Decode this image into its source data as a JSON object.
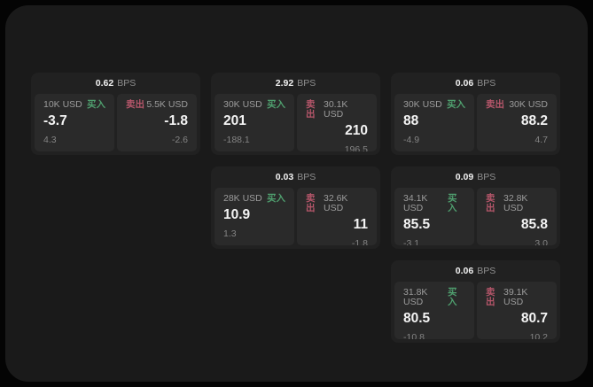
{
  "colors": {
    "buy_green": "#4f9e6e",
    "sell_red": "#b5566a",
    "card_bg": "#212121",
    "panel_bg": "#2a2a2a",
    "screen_bg": "#1a1a1a"
  },
  "labels": {
    "bps_unit": "BPS",
    "buy": "买入",
    "sell": "卖出"
  },
  "cards": [
    {
      "bps": "0.62",
      "buy": {
        "amount": "10K USD",
        "value": "-3.7",
        "sub": "4.3"
      },
      "sell": {
        "amount": "5.5K USD",
        "value": "-1.8",
        "sub": "-2.6"
      }
    },
    {
      "bps": "2.92",
      "buy": {
        "amount": "30K USD",
        "value": "201",
        "sub": "-188.1"
      },
      "sell": {
        "amount": "30.1K USD",
        "value": "210",
        "sub": "196.5"
      }
    },
    {
      "bps": "0.06",
      "buy": {
        "amount": "30K USD",
        "value": "88",
        "sub": "-4.9"
      },
      "sell": {
        "amount": "30K USD",
        "value": "88.2",
        "sub": "4.7"
      }
    },
    {
      "bps": "0.03",
      "buy": {
        "amount": "28K USD",
        "value": "10.9",
        "sub": "1.3"
      },
      "sell": {
        "amount": "32.6K USD",
        "value": "11",
        "sub": "-1.8"
      }
    },
    {
      "bps": "0.09",
      "buy": {
        "amount": "34.1K USD",
        "value": "85.5",
        "sub": "-3.1"
      },
      "sell": {
        "amount": "32.8K USD",
        "value": "85.8",
        "sub": "3.0"
      }
    },
    {
      "bps": "0.06",
      "buy": {
        "amount": "31.8K USD",
        "value": "80.5",
        "sub": "-10.8"
      },
      "sell": {
        "amount": "39.1K USD",
        "value": "80.7",
        "sub": "10.2"
      }
    }
  ]
}
